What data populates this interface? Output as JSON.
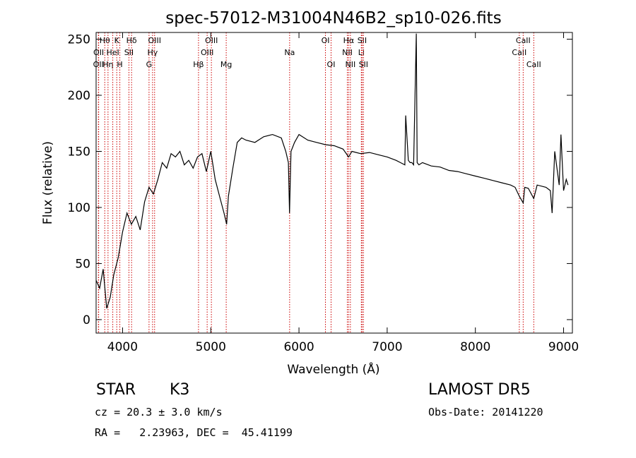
{
  "chart_data": {
    "type": "line",
    "title": "spec-57012-M31004N46B2_sp10-026.fits",
    "xlabel": "Wavelength (Å)",
    "ylabel": "Flux (relative)",
    "xlim": [
      3700,
      9100
    ],
    "ylim": [
      -12,
      256
    ],
    "xticks": [
      4000,
      5000,
      6000,
      7000,
      8000,
      9000
    ],
    "yticks": [
      0,
      50,
      100,
      150,
      200,
      250
    ],
    "line_color": "#000000",
    "series": [
      {
        "x": [
          3700,
          3740,
          3780,
          3820,
          3860,
          3900,
          3950,
          4000,
          4050,
          4100,
          4150,
          4200,
          4250,
          4300,
          4350,
          4400,
          4450,
          4500,
          4550,
          4600,
          4650,
          4700,
          4750,
          4800,
          4850,
          4900,
          4950,
          5000,
          5050,
          5100,
          5150,
          5180,
          5200,
          5250,
          5300,
          5350,
          5400,
          5500,
          5600,
          5700,
          5800,
          5850,
          5880,
          5893,
          5910,
          5950,
          6000,
          6100,
          6200,
          6300,
          6400,
          6500,
          6563,
          6600,
          6700,
          6800,
          6900,
          7000,
          7100,
          7150,
          7200,
          7210,
          7240,
          7260,
          7280,
          7300,
          7330,
          7340,
          7360,
          7400,
          7500,
          7600,
          7700,
          7800,
          7900,
          8000,
          8100,
          8200,
          8300,
          8400,
          8450,
          8498,
          8542,
          8560,
          8600,
          8662,
          8700,
          8800,
          8850,
          8870,
          8900,
          8950,
          8970,
          9000,
          9030,
          9050
        ],
        "y": [
          35,
          28,
          45,
          10,
          20,
          40,
          55,
          78,
          95,
          85,
          92,
          80,
          105,
          118,
          112,
          125,
          140,
          135,
          148,
          145,
          150,
          138,
          142,
          135,
          145,
          148,
          132,
          150,
          125,
          110,
          95,
          85,
          110,
          135,
          158,
          162,
          160,
          158,
          163,
          165,
          162,
          150,
          140,
          95,
          150,
          158,
          165,
          160,
          158,
          156,
          155,
          152,
          145,
          150,
          148,
          149,
          147,
          145,
          142,
          140,
          138,
          182,
          142,
          140,
          140,
          138,
          255,
          140,
          138,
          140,
          137,
          136,
          133,
          132,
          130,
          128,
          126,
          124,
          122,
          120,
          118,
          110,
          104,
          118,
          117,
          108,
          120,
          118,
          115,
          95,
          150,
          120,
          165,
          115,
          125,
          120
        ]
      }
    ],
    "line_markers": [
      {
        "wave": 3726,
        "row": 2,
        "label": "OII"
      },
      {
        "wave": 3729,
        "row": 1,
        "label": "OII"
      },
      {
        "wave": 3798,
        "row": 0,
        "label": "Hθ"
      },
      {
        "wave": 3835,
        "row": 2,
        "label": "Hη"
      },
      {
        "wave": 3889,
        "row": 1,
        "label": "HeI"
      },
      {
        "wave": 3934,
        "row": 0,
        "label": "K"
      },
      {
        "wave": 3969,
        "row": 2,
        "label": "H"
      },
      {
        "wave": 4072,
        "row": 1,
        "label": "SII"
      },
      {
        "wave": 4102,
        "row": 0,
        "label": "Hδ"
      },
      {
        "wave": 4300,
        "row": 2,
        "label": "G"
      },
      {
        "wave": 4340,
        "row": 1,
        "label": "Hγ"
      },
      {
        "wave": 4363,
        "row": 0,
        "label": "OIII"
      },
      {
        "wave": 4861,
        "row": 2,
        "label": "Hβ"
      },
      {
        "wave": 4959,
        "row": 1,
        "label": "OIII"
      },
      {
        "wave": 5007,
        "row": 0,
        "label": "OIII"
      },
      {
        "wave": 5175,
        "row": 2,
        "label": "Mg"
      },
      {
        "wave": 5894,
        "row": 1,
        "label": "Na"
      },
      {
        "wave": 6300,
        "row": 0,
        "label": "OI"
      },
      {
        "wave": 6364,
        "row": 2,
        "label": "OI"
      },
      {
        "wave": 6548,
        "row": 1,
        "label": "NII"
      },
      {
        "wave": 6563,
        "row": 0,
        "label": "Hα"
      },
      {
        "wave": 6583,
        "row": 2,
        "label": "NII"
      },
      {
        "wave": 6707,
        "row": 1,
        "label": "Li"
      },
      {
        "wave": 6716,
        "row": 0,
        "label": "SII"
      },
      {
        "wave": 6731,
        "row": 2,
        "label": "SII"
      },
      {
        "wave": 8498,
        "row": 1,
        "label": "CaII"
      },
      {
        "wave": 8542,
        "row": 0,
        "label": "CaII"
      },
      {
        "wave": 8662,
        "row": 2,
        "label": "CaII"
      }
    ],
    "marker_color": "#cc0000"
  },
  "info": {
    "object_class": "STAR",
    "subclass": "K3",
    "survey": "LAMOST DR5",
    "redshift_line": "cz = 20.3 ± 3.0 km/s",
    "obs_date": "Obs-Date: 20141220",
    "coords": "RA =   2.23963, DEC =  45.41199"
  }
}
